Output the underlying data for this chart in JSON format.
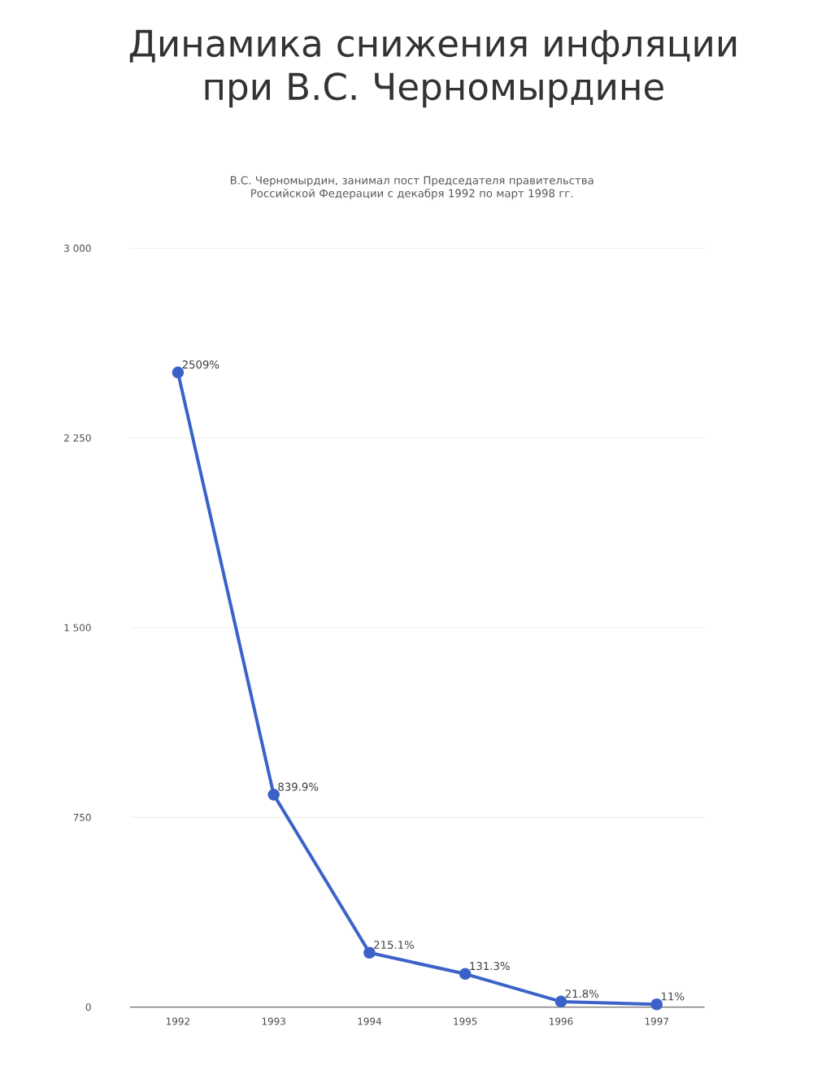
{
  "chart_data": {
    "type": "line",
    "title": "Динамика снижения инфляции при В.С. Черномырдине",
    "subtitle": "В.С. Черномырдин, занимал пост Председателя правительства Российской Федерации с декабря 1992 по март 1998 гг.",
    "categories": [
      "1992",
      "1993",
      "1994",
      "1995",
      "1996",
      "1997"
    ],
    "values": [
      2509,
      839.9,
      215.1,
      131.3,
      21.8,
      11
    ],
    "value_labels": [
      "2509%",
      "839.9%",
      "215.1%",
      "131.3%",
      "21.8%",
      "11%"
    ],
    "color": "#3a62c8",
    "ylim": [
      0,
      3000
    ],
    "yticks": [
      0,
      750,
      {
        "value": 1500,
        "label": "1 500"
      },
      {
        "value": 2250,
        "label": "2 250"
      },
      {
        "value": 3000,
        "label": "3 000"
      }
    ],
    "grid": "y",
    "marker": "circle",
    "line_style": "solid"
  }
}
